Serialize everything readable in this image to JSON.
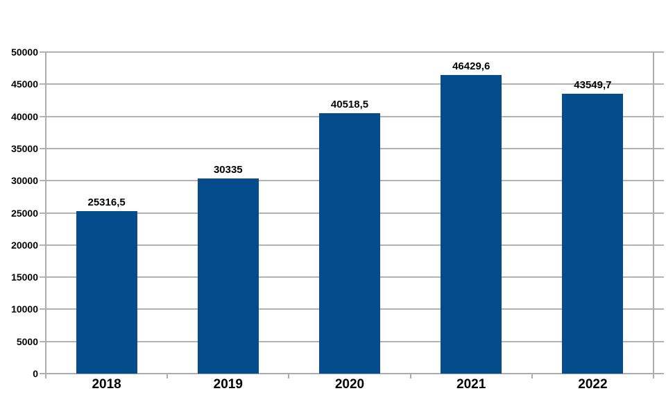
{
  "chart_data": {
    "type": "bar",
    "title": "",
    "xlabel": "",
    "ylabel": "",
    "categories": [
      "2018",
      "2019",
      "2020",
      "2021",
      "2022"
    ],
    "values": [
      25316.5,
      30335,
      40518.5,
      46429.6,
      43549.7
    ],
    "value_labels": [
      "25316,5",
      "30335",
      "40518,5",
      "46429,6",
      "43549,7"
    ],
    "ylim": [
      0,
      50000
    ],
    "ytick_step": 5000,
    "ytick_labels": [
      "0",
      "5000",
      "10000",
      "15000",
      "20000",
      "25000",
      "30000",
      "35000",
      "40000",
      "45000",
      "50000"
    ],
    "grid": true,
    "legend_position": "none",
    "colors": {
      "bar": "#054C8C",
      "gridline": "#B3B3B3",
      "axis": "#ADADAD",
      "label": "#000000",
      "background": "#FFFFFF"
    }
  }
}
